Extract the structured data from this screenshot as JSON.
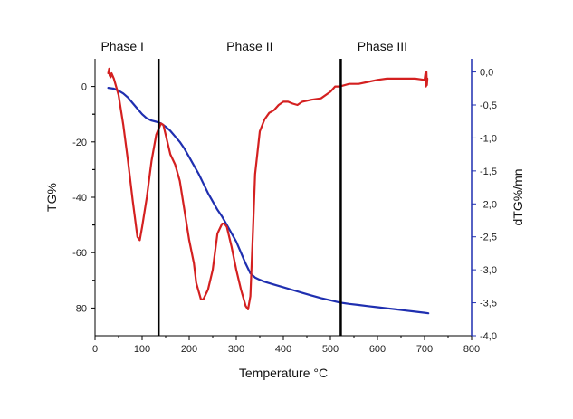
{
  "chart_data": {
    "type": "line",
    "xlabel": "Temperature °C",
    "ylabel": "TG%",
    "y2label": "dTG%/mn",
    "xlim": [
      0,
      800
    ],
    "ylim": [
      -90,
      10
    ],
    "y2lim": [
      -4.0,
      0.2
    ],
    "x_ticks": [
      "0",
      "100",
      "200",
      "300",
      "400",
      "500",
      "600",
      "700",
      "800"
    ],
    "y_ticks": [
      "0",
      "-20",
      "-40",
      "-60",
      "-80"
    ],
    "y2_ticks": [
      "0,0",
      "-0,5",
      "-1,0",
      "-1,5",
      "-2,0",
      "-2,5",
      "-3,0",
      "-3,5",
      "-4,0"
    ],
    "grid": false,
    "colors": {
      "tg": "#1f2fb0",
      "dtg": "#d42020",
      "left_axis": "#000000",
      "right_axis": "#1f2fb0",
      "dividers": "#000000"
    },
    "phases": [
      {
        "label": "Phase I",
        "start": 0,
        "end": 135
      },
      {
        "label": "Phase II",
        "start": 135,
        "end": 522
      },
      {
        "label": "Phase III",
        "start": 522,
        "end": 800
      }
    ],
    "series": [
      {
        "key": "tg",
        "axis": "left",
        "x": [
          28,
          40,
          50,
          60,
          70,
          80,
          90,
          100,
          110,
          120,
          130,
          140,
          150,
          160,
          170,
          180,
          190,
          200,
          210,
          220,
          230,
          240,
          250,
          260,
          270,
          280,
          290,
          300,
          310,
          320,
          330,
          340,
          350,
          360,
          380,
          400,
          420,
          440,
          460,
          480,
          500,
          520,
          540,
          560,
          580,
          600,
          620,
          640,
          660,
          680,
          700,
          708
        ],
        "values": [
          -0.5,
          -0.8,
          -1.5,
          -2.5,
          -4.0,
          -6.0,
          -8.0,
          -10.0,
          -11.5,
          -12.3,
          -12.7,
          -13.3,
          -14.5,
          -16.0,
          -18.0,
          -20.0,
          -22.5,
          -25.5,
          -28.5,
          -31.5,
          -35.0,
          -38.5,
          -41.5,
          -44.5,
          -47.0,
          -50.0,
          -53.0,
          -56.0,
          -60.0,
          -64.0,
          -67.5,
          -69.0,
          -69.8,
          -70.5,
          -71.5,
          -72.5,
          -73.5,
          -74.5,
          -75.5,
          -76.4,
          -77.2,
          -78.0,
          -78.5,
          -78.9,
          -79.3,
          -79.7,
          -80.1,
          -80.5,
          -80.9,
          -81.3,
          -81.7,
          -81.9
        ]
      },
      {
        "key": "dtg",
        "axis": "right",
        "x": [
          28,
          30,
          31,
          33,
          35,
          40,
          50,
          60,
          70,
          80,
          90,
          95,
          100,
          110,
          120,
          130,
          140,
          145,
          150,
          160,
          170,
          180,
          190,
          200,
          210,
          215,
          225,
          230,
          240,
          250,
          260,
          270,
          275,
          280,
          290,
          300,
          310,
          320,
          325,
          330,
          335,
          340,
          350,
          360,
          370,
          380,
          390,
          400,
          410,
          420,
          430,
          440,
          460,
          480,
          500,
          510,
          520,
          540,
          560,
          580,
          600,
          620,
          640,
          660,
          680,
          700,
          702,
          703,
          704,
          705,
          706
        ],
        "values": [
          -0.02,
          0.05,
          -0.05,
          -0.08,
          -0.02,
          -0.1,
          -0.35,
          -0.8,
          -1.35,
          -1.95,
          -2.5,
          -2.55,
          -2.35,
          -1.9,
          -1.35,
          -0.95,
          -0.78,
          -0.8,
          -0.95,
          -1.25,
          -1.4,
          -1.65,
          -2.1,
          -2.55,
          -2.9,
          -3.2,
          -3.45,
          -3.45,
          -3.3,
          -3.0,
          -2.45,
          -2.3,
          -2.3,
          -2.35,
          -2.65,
          -3.0,
          -3.3,
          -3.55,
          -3.6,
          -3.4,
          -2.5,
          -1.55,
          -0.9,
          -0.72,
          -0.62,
          -0.58,
          -0.5,
          -0.45,
          -0.45,
          -0.48,
          -0.5,
          -0.45,
          -0.42,
          -0.4,
          -0.3,
          -0.22,
          -0.22,
          -0.18,
          -0.18,
          -0.15,
          -0.12,
          -0.1,
          -0.1,
          -0.1,
          -0.1,
          -0.12,
          -0.02,
          -0.22,
          0.0,
          -0.2,
          -0.1
        ]
      }
    ]
  }
}
